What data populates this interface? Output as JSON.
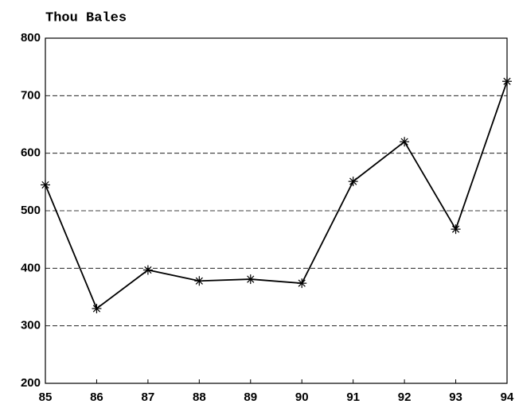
{
  "chart_data": {
    "type": "line",
    "y_axis_label": "Thou Bales",
    "x": [
      85,
      86,
      87,
      88,
      89,
      90,
      91,
      92,
      93,
      94
    ],
    "values": [
      545,
      330,
      397,
      378,
      381,
      374,
      551,
      620,
      468,
      725
    ],
    "color": "#000000",
    "xlim": [
      85,
      94
    ],
    "xticks": [
      85,
      86,
      87,
      88,
      89,
      90,
      91,
      92,
      93,
      94
    ],
    "ylim": [
      200,
      800
    ],
    "yticks": [
      200,
      300,
      400,
      500,
      600,
      700,
      800
    ],
    "grid": true
  }
}
